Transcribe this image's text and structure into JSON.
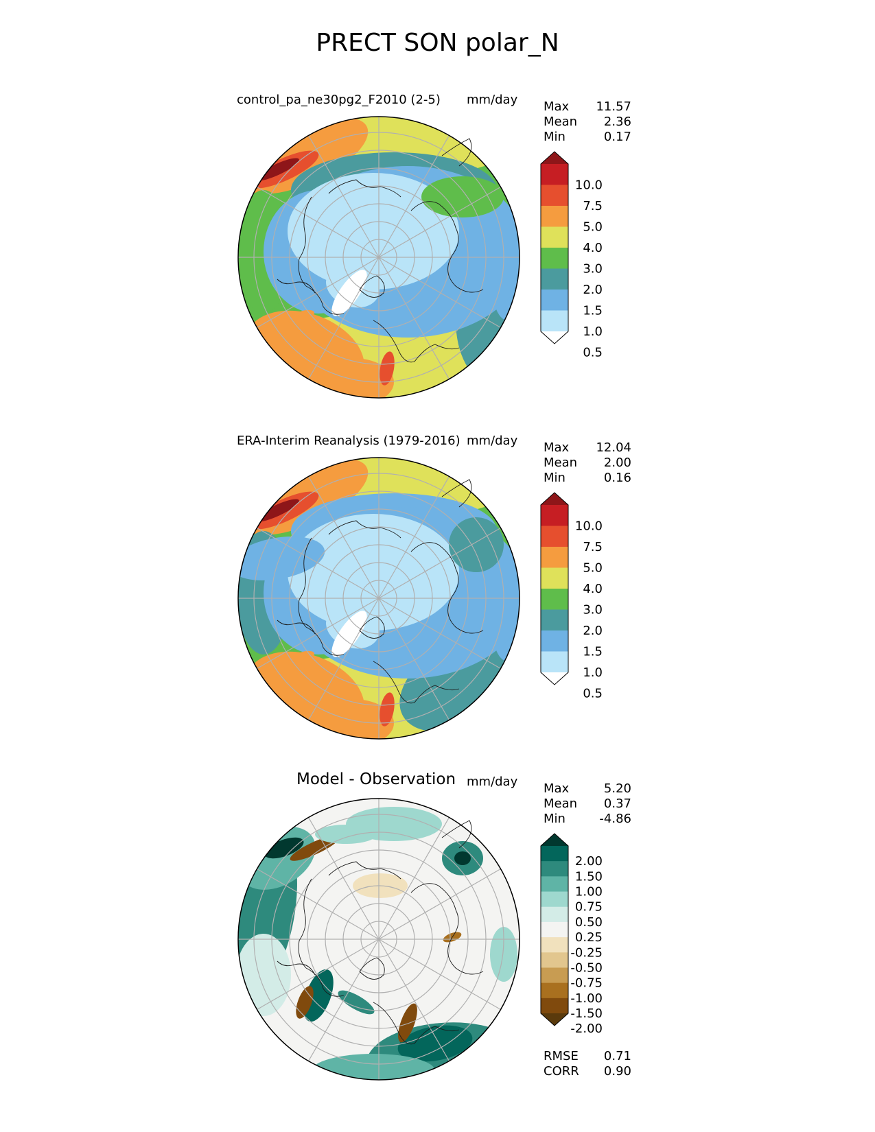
{
  "figure": {
    "title": "PRECT SON polar_N"
  },
  "colors": {
    "prect_levels": [
      "#ffffff",
      "#b9e4f8",
      "#6fb2e4",
      "#4b9b9e",
      "#5fbd4b",
      "#dfe15a",
      "#f59c3f",
      "#e64f2e",
      "#c61e23",
      "#8e1619"
    ],
    "diff_levels": [
      "#5a3a0c",
      "#804a0d",
      "#a9701f",
      "#c89c52",
      "#e2c68e",
      "#f1e1bd",
      "#f4f4f2",
      "#d3ece7",
      "#9ed8ce",
      "#5fb4a6",
      "#2e8a7d",
      "#03665b",
      "#01382f"
    ]
  },
  "panels": [
    {
      "id": "test",
      "title": "control_pa_ne30pg2_F2010 (2-5)",
      "units": "mm/day",
      "stats": {
        "max_label": "Max",
        "max": "11.57",
        "mean_label": "Mean",
        "mean": "2.36",
        "min_label": "Min",
        "min": "0.17"
      },
      "colorbar": {
        "type": "prect",
        "labels": [
          "10.0",
          "7.5",
          "5.0",
          "4.0",
          "3.0",
          "2.0",
          "1.5",
          "1.0",
          "0.5"
        ]
      }
    },
    {
      "id": "ref",
      "title": "ERA-Interim Reanalysis (1979-2016)",
      "units": "mm/day",
      "stats": {
        "max_label": "Max",
        "max": "12.04",
        "mean_label": "Mean",
        "mean": "2.00",
        "min_label": "Min",
        "min": "0.16"
      },
      "colorbar": {
        "type": "prect",
        "labels": [
          "10.0",
          "7.5",
          "5.0",
          "4.0",
          "3.0",
          "2.0",
          "1.5",
          "1.0",
          "0.5"
        ]
      }
    },
    {
      "id": "diff",
      "title": "Model - Observation",
      "units": "mm/day",
      "stats": {
        "max_label": "Max",
        "max": "5.20",
        "mean_label": "Mean",
        "mean": "0.37",
        "min_label": "Min",
        "min": "-4.86"
      },
      "colorbar": {
        "type": "diff",
        "labels": [
          "2.00",
          "1.50",
          "1.00",
          "0.75",
          "0.50",
          "0.25",
          "-0.25",
          "-0.50",
          "-0.75",
          "-1.00",
          "-1.50",
          "-2.00"
        ]
      },
      "metrics": {
        "rmse_label": "RMSE",
        "rmse": "0.71",
        "corr_label": "CORR",
        "corr": "0.90"
      }
    }
  ]
}
